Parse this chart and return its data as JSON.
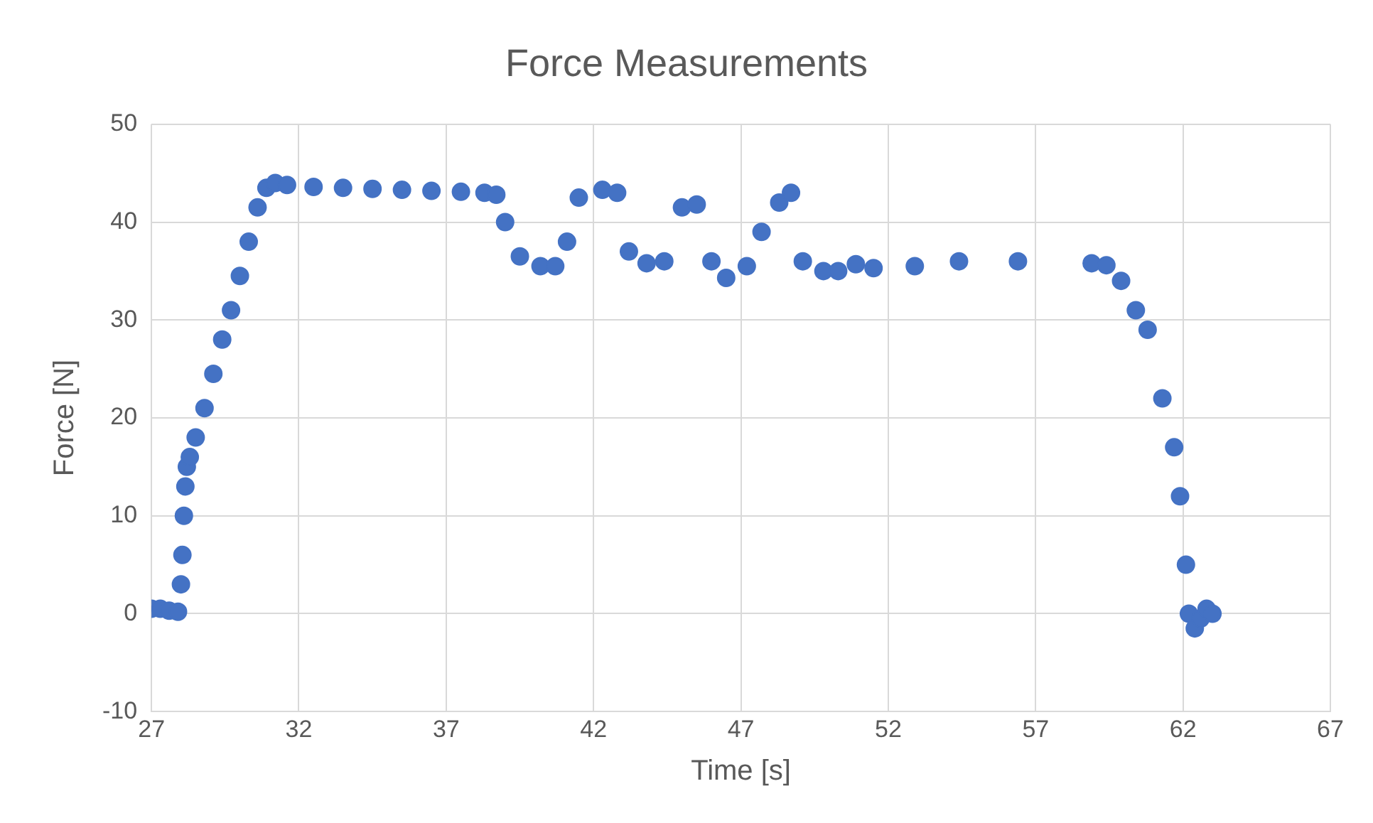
{
  "chart_data": {
    "type": "scatter",
    "title": "Force Measurements",
    "xlabel": "Time [s]",
    "ylabel": "Force [N]",
    "xlim": [
      27,
      67
    ],
    "xticks": [
      27,
      32,
      37,
      42,
      47,
      52,
      57,
      62,
      67
    ],
    "ylim": [
      -10,
      50
    ],
    "yticks": [
      -10,
      0,
      10,
      20,
      30,
      40,
      50
    ],
    "grid": true,
    "marker": "circle",
    "series": [
      {
        "color": "#4472c4",
        "x": [
          27.0,
          27.3,
          27.6,
          27.9,
          28.0,
          28.05,
          28.1,
          28.15,
          28.2,
          28.3,
          28.5,
          28.8,
          29.1,
          29.4,
          29.7,
          30.0,
          30.3,
          30.6,
          30.9,
          31.2,
          31.6,
          32.5,
          33.5,
          34.5,
          35.5,
          36.5,
          37.5,
          38.3,
          38.7,
          39.0,
          39.5,
          40.2,
          40.7,
          41.1,
          41.5,
          42.3,
          42.8,
          43.2,
          43.8,
          44.4,
          45.0,
          45.5,
          46.0,
          46.5,
          47.2,
          47.7,
          48.3,
          48.7,
          49.1,
          49.8,
          50.3,
          50.9,
          51.5,
          52.9,
          54.4,
          56.4,
          58.9,
          59.4,
          59.9,
          60.4,
          60.8,
          61.3,
          61.7,
          61.9,
          62.1,
          62.2,
          62.4,
          62.6,
          62.8,
          63.0
        ],
        "values": [
          0.5,
          0.5,
          0.3,
          0.2,
          3,
          6,
          10,
          13,
          15,
          16,
          18,
          21,
          24.5,
          28,
          31,
          34.5,
          38,
          41.5,
          43.5,
          44,
          43.8,
          43.6,
          43.5,
          43.4,
          43.3,
          43.2,
          43.1,
          43,
          42.8,
          40,
          36.5,
          35.5,
          35.5,
          38,
          42.5,
          43.3,
          43,
          37,
          35.8,
          36,
          41.5,
          41.8,
          36,
          34.3,
          35.5,
          39,
          42,
          43,
          36,
          35,
          35,
          35.7,
          35.3,
          35.5,
          36,
          36,
          35.8,
          35.6,
          34,
          31,
          29,
          22,
          17,
          12,
          5,
          0,
          -1.5,
          -0.5,
          0.5,
          0
        ]
      }
    ]
  }
}
